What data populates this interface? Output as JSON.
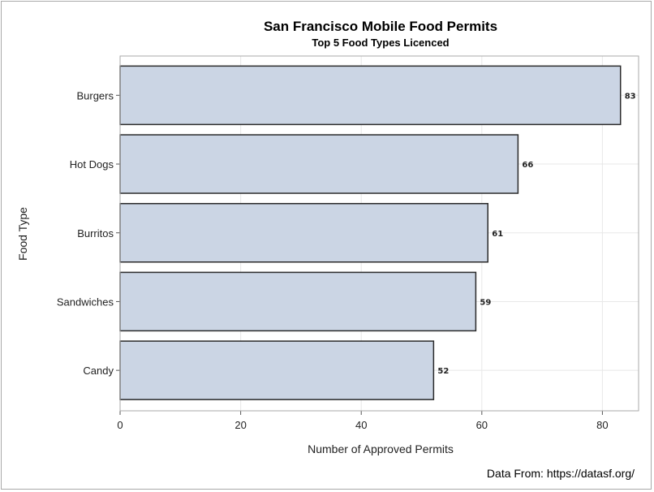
{
  "chart_data": {
    "type": "bar",
    "orientation": "horizontal",
    "title": "San Francisco Mobile Food Permits",
    "subtitle": "Top 5 Food Types Licenced",
    "xlabel": "Number of Approved Permits",
    "ylabel": "Food Type",
    "categories": [
      "Burgers",
      "Hot Dogs",
      "Burritos",
      "Sandwiches",
      "Candy"
    ],
    "values": [
      83,
      66,
      61,
      59,
      52
    ],
    "data_labels": [
      "83",
      "66",
      "61",
      "59",
      "52"
    ],
    "xlim": [
      0,
      86
    ],
    "xticks": [
      0,
      20,
      40,
      60,
      80
    ],
    "xtick_labels": [
      "0",
      "20",
      "40",
      "60",
      "80"
    ],
    "grid": true,
    "bar_fill": "#cbd5e4",
    "bar_stroke": "#2b2b2b",
    "footnote": "Data From: https://datasf.org/"
  }
}
